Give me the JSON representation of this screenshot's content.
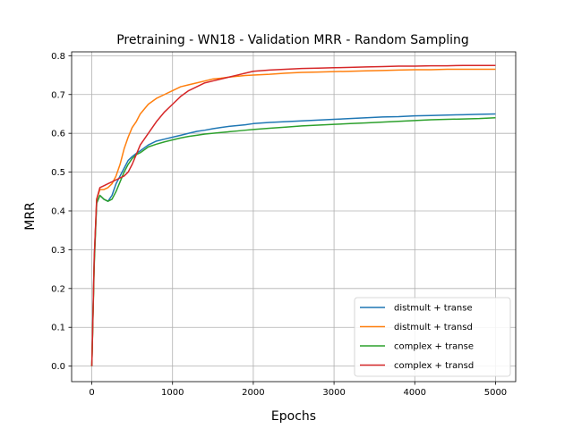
{
  "chart_data": {
    "type": "line",
    "title": "Pretraining - WN18 - Validation MRR - Random Sampling",
    "xlabel": "Epochs",
    "ylabel": "MRR",
    "xlim": [
      -250,
      5250
    ],
    "ylim": [
      -0.04,
      0.81
    ],
    "xticks": [
      0,
      1000,
      2000,
      3000,
      4000,
      5000
    ],
    "xtick_labels": [
      "0",
      "1000",
      "2000",
      "3000",
      "4000",
      "5000"
    ],
    "yticks": [
      0.0,
      0.1,
      0.2,
      0.3,
      0.4,
      0.5,
      0.6,
      0.7,
      0.8
    ],
    "ytick_labels": [
      "0.0",
      "0.1",
      "0.2",
      "0.3",
      "0.4",
      "0.5",
      "0.6",
      "0.7",
      "0.8"
    ],
    "grid": true,
    "legend_position": "lower-right",
    "series": [
      {
        "name": "distmult + transe",
        "color": "#1f77b4",
        "x": [
          0,
          30,
          60,
          100,
          150,
          200,
          250,
          300,
          350,
          400,
          450,
          500,
          550,
          600,
          700,
          800,
          900,
          1000,
          1100,
          1200,
          1300,
          1400,
          1500,
          1600,
          1700,
          1800,
          1900,
          2000,
          2200,
          2400,
          2600,
          2800,
          3000,
          3200,
          3400,
          3600,
          3800,
          4000,
          4200,
          4400,
          4600,
          4800,
          5000
        ],
        "y": [
          0.0,
          0.28,
          0.42,
          0.44,
          0.43,
          0.425,
          0.44,
          0.47,
          0.49,
          0.51,
          0.53,
          0.54,
          0.548,
          0.555,
          0.57,
          0.58,
          0.585,
          0.59,
          0.595,
          0.6,
          0.605,
          0.608,
          0.612,
          0.615,
          0.618,
          0.62,
          0.622,
          0.625,
          0.628,
          0.63,
          0.632,
          0.634,
          0.636,
          0.638,
          0.64,
          0.642,
          0.643,
          0.645,
          0.646,
          0.647,
          0.648,
          0.649,
          0.65
        ]
      },
      {
        "name": "distmult + transd",
        "color": "#ff7f0e",
        "x": [
          0,
          30,
          60,
          100,
          150,
          200,
          250,
          300,
          350,
          400,
          450,
          500,
          550,
          600,
          700,
          800,
          900,
          1000,
          1100,
          1200,
          1300,
          1400,
          1500,
          1600,
          1700,
          1800,
          1900,
          2000,
          2200,
          2400,
          2600,
          2800,
          3000,
          3200,
          3400,
          3600,
          3800,
          4000,
          4200,
          4400,
          4600,
          4800,
          5000
        ],
        "y": [
          0.0,
          0.27,
          0.43,
          0.455,
          0.455,
          0.46,
          0.47,
          0.49,
          0.52,
          0.56,
          0.59,
          0.615,
          0.63,
          0.65,
          0.675,
          0.69,
          0.7,
          0.71,
          0.72,
          0.725,
          0.73,
          0.735,
          0.74,
          0.742,
          0.745,
          0.747,
          0.749,
          0.75,
          0.752,
          0.755,
          0.757,
          0.758,
          0.759,
          0.76,
          0.761,
          0.762,
          0.763,
          0.764,
          0.764,
          0.765,
          0.765,
          0.765,
          0.765
        ]
      },
      {
        "name": "complex + transe",
        "color": "#2ca02c",
        "x": [
          0,
          30,
          60,
          100,
          150,
          200,
          250,
          300,
          350,
          400,
          450,
          500,
          550,
          600,
          700,
          800,
          900,
          1000,
          1100,
          1200,
          1300,
          1400,
          1500,
          1600,
          1700,
          1800,
          1900,
          2000,
          2200,
          2400,
          2600,
          2800,
          3000,
          3200,
          3400,
          3600,
          3800,
          4000,
          4200,
          4400,
          4600,
          4800,
          5000
        ],
        "y": [
          0.0,
          0.26,
          0.42,
          0.44,
          0.43,
          0.425,
          0.43,
          0.45,
          0.475,
          0.5,
          0.52,
          0.535,
          0.545,
          0.55,
          0.565,
          0.572,
          0.578,
          0.583,
          0.588,
          0.592,
          0.595,
          0.598,
          0.6,
          0.602,
          0.604,
          0.606,
          0.608,
          0.61,
          0.613,
          0.616,
          0.619,
          0.621,
          0.623,
          0.625,
          0.627,
          0.629,
          0.631,
          0.633,
          0.635,
          0.636,
          0.637,
          0.638,
          0.64
        ]
      },
      {
        "name": "complex + transd",
        "color": "#d62728",
        "x": [
          0,
          30,
          60,
          100,
          150,
          200,
          250,
          300,
          350,
          400,
          450,
          500,
          550,
          600,
          700,
          800,
          900,
          1000,
          1100,
          1200,
          1300,
          1400,
          1500,
          1600,
          1700,
          1800,
          1900,
          2000,
          2200,
          2400,
          2600,
          2800,
          3000,
          3200,
          3400,
          3600,
          3800,
          4000,
          4200,
          4400,
          4600,
          4800,
          5000
        ],
        "y": [
          0.0,
          0.28,
          0.43,
          0.46,
          0.465,
          0.47,
          0.475,
          0.48,
          0.485,
          0.49,
          0.5,
          0.52,
          0.545,
          0.57,
          0.6,
          0.63,
          0.655,
          0.675,
          0.695,
          0.71,
          0.72,
          0.73,
          0.735,
          0.74,
          0.745,
          0.75,
          0.755,
          0.76,
          0.763,
          0.765,
          0.767,
          0.768,
          0.769,
          0.77,
          0.771,
          0.772,
          0.773,
          0.773,
          0.774,
          0.774,
          0.775,
          0.775,
          0.775
        ]
      }
    ]
  }
}
